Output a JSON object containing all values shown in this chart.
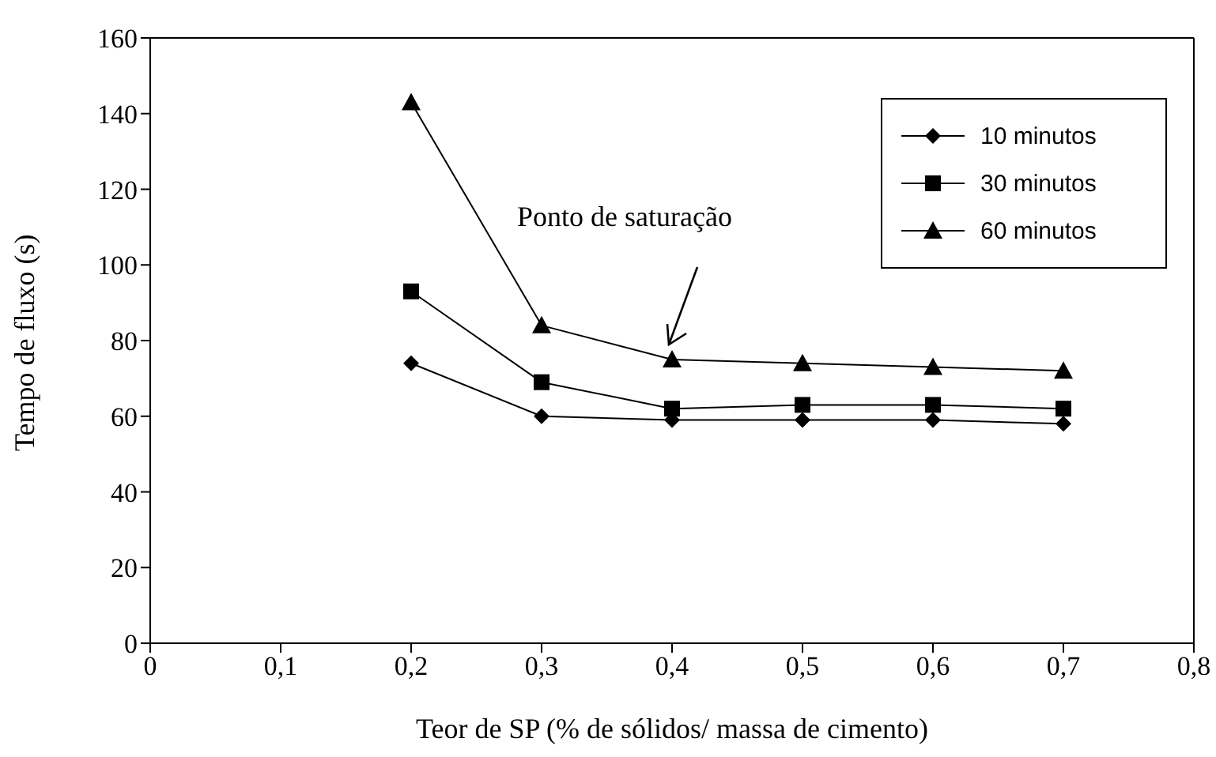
{
  "chart_data": {
    "type": "line",
    "xlabel": "Teor de SP (% de sólidos/ massa de cimento)",
    "ylabel": "Tempo de fluxo (s)",
    "x": [
      0.2,
      0.3,
      0.4,
      0.5,
      0.6,
      0.7
    ],
    "series": [
      {
        "name": "10 minutos",
        "color": "#000000",
        "marker": "diamond",
        "values": [
          74,
          60,
          59,
          59,
          59,
          58
        ]
      },
      {
        "name": "30 minutos",
        "color": "#000000",
        "marker": "square",
        "values": [
          93,
          69,
          62,
          63,
          63,
          62
        ]
      },
      {
        "name": "60 minutos",
        "color": "#000000",
        "marker": "triangle",
        "values": [
          143,
          84,
          75,
          74,
          73,
          72
        ]
      }
    ],
    "xlim": [
      0,
      0.8
    ],
    "xticks": [
      0,
      {
        "value": 0.1,
        "label": "0,1"
      },
      {
        "value": 0.2,
        "label": "0,2"
      },
      {
        "value": 0.3,
        "label": "0,3"
      },
      {
        "value": 0.4,
        "label": "0,4"
      },
      {
        "value": 0.5,
        "label": "0,5"
      },
      {
        "value": 0.6,
        "label": "0,6"
      },
      {
        "value": 0.7,
        "label": "0,7"
      },
      {
        "value": 0.8,
        "label": "0,8"
      }
    ],
    "ylim": [
      0,
      160
    ],
    "yticks": [
      0,
      20,
      40,
      60,
      80,
      100,
      120,
      140,
      160
    ],
    "annotations": [
      "Ponto de saturação"
    ],
    "legend": "top right",
    "grid": false,
    "line_style": "solid"
  }
}
